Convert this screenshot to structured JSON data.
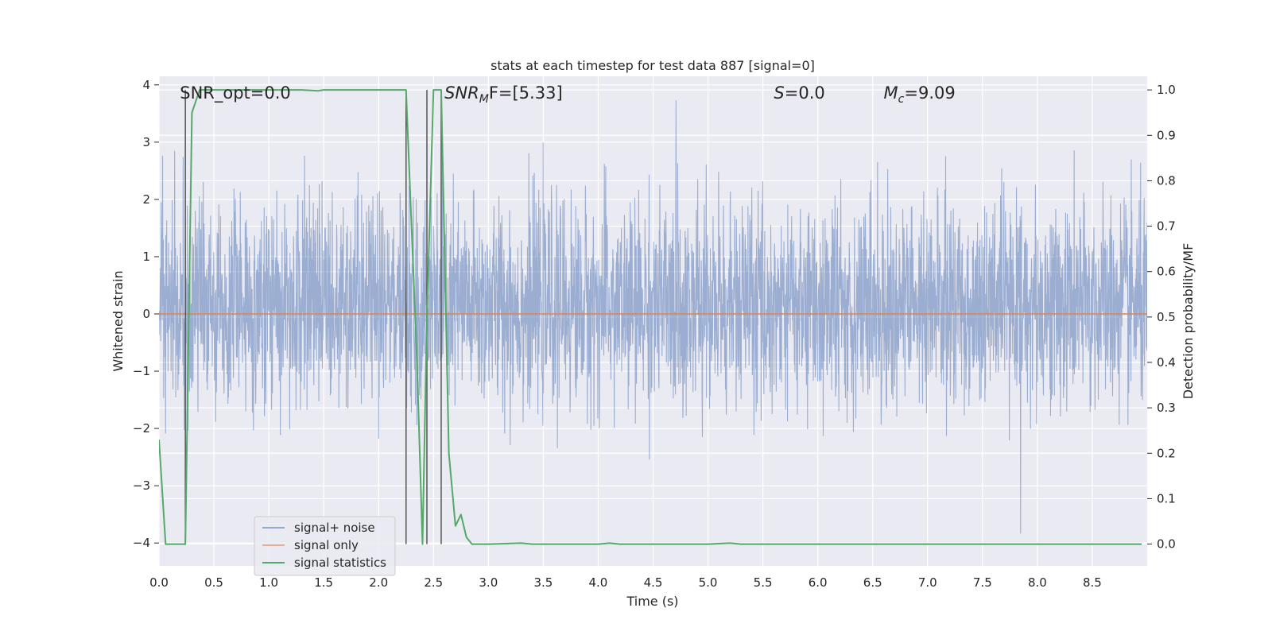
{
  "chart_data": {
    "type": "line",
    "title": "stats at each timestep for test data 887 [signal=0]",
    "xlabel": "Time (s)",
    "ylabel": "Whitened strain",
    "y2label": "Detection probability/MF",
    "xlim": [
      0.0,
      9.0
    ],
    "ylim": [
      -4.4,
      4.15
    ],
    "y2lim": [
      -0.048,
      1.03
    ],
    "xticks": [
      "0.0",
      "0.5",
      "1.0",
      "1.5",
      "2.0",
      "2.5",
      "3.0",
      "3.5",
      "4.0",
      "4.5",
      "5.0",
      "5.5",
      "6.0",
      "6.5",
      "7.0",
      "7.5",
      "8.0",
      "8.5"
    ],
    "yticks": [
      "4",
      "3",
      "2",
      "1",
      "0",
      "−1",
      "−2",
      "−3",
      "−4"
    ],
    "y2ticks": [
      "1.0",
      "0.9",
      "0.8",
      "0.7",
      "0.6",
      "0.5",
      "0.4",
      "0.3",
      "0.2",
      "0.1",
      "0.0"
    ],
    "grid": true,
    "legend_position": "lower-left",
    "colors": {
      "background": "#eaeaf2",
      "grid": "#ffffff",
      "noise": "#4c72b0",
      "signal": "#dd8452",
      "stats": "#55a868",
      "vlines": "#555555"
    },
    "annotations": [
      {
        "prefix": "SNR_opt=0.0",
        "italic": "",
        "sub": "",
        "suffix": "",
        "x": 0.19
      },
      {
        "prefix": "",
        "italic": "SNR",
        "sub": "M",
        "suffix": "F=[5.33]",
        "x": 2.6
      },
      {
        "prefix": "",
        "italic": "S",
        "sub": "",
        "suffix": "=0.0",
        "x": 5.6
      },
      {
        "prefix": "",
        "italic": "M",
        "sub": "c",
        "suffix": "=9.09",
        "x": 6.6
      }
    ],
    "vlines_x": [
      0.24,
      2.25,
      2.44,
      2.57
    ],
    "series": [
      {
        "name": "signal+ noise",
        "envelope": {
          "x_start": 0.0,
          "x_end": 9.0,
          "typical_max": 2.2,
          "typical_min": -1.9,
          "peak_max": 3.9,
          "peak_min": -4.0,
          "seed": 887
        }
      },
      {
        "name": "signal only",
        "x": [
          0.0,
          9.0
        ],
        "y": [
          0.0,
          0.0
        ]
      },
      {
        "name": "signal statistics",
        "x": [
          0.0,
          0.06,
          0.24,
          0.3,
          0.37,
          0.45,
          1.0,
          1.3,
          1.45,
          1.5,
          2.0,
          2.2,
          2.25,
          2.3,
          2.35,
          2.4,
          2.44,
          2.5,
          2.57,
          2.64,
          2.7,
          2.75,
          2.8,
          2.85,
          2.9,
          3.0,
          3.3,
          3.4,
          4.0,
          4.1,
          4.2,
          5.0,
          5.2,
          5.3,
          6.0,
          7.0,
          8.0,
          8.95
        ],
        "y": [
          0.23,
          0.0,
          0.0,
          0.95,
          1.0,
          1.0,
          1.0,
          1.0,
          0.998,
          1.0,
          1.0,
          1.0,
          1.0,
          0.7,
          0.4,
          0.0,
          0.5,
          1.0,
          1.0,
          0.2,
          0.04,
          0.065,
          0.015,
          0.0,
          0.0,
          0.0,
          0.002,
          0.0,
          0.0,
          0.002,
          0.0,
          0.0,
          0.002,
          0.0,
          0.0,
          0.0,
          0.0,
          0.0
        ]
      }
    ]
  }
}
